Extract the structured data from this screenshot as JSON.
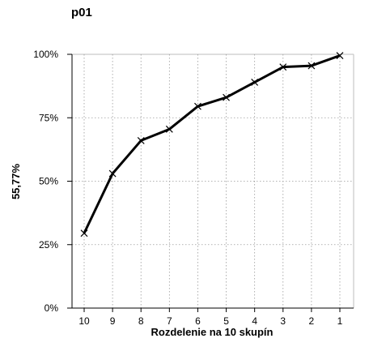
{
  "chart_data": {
    "type": "line",
    "title": "p01",
    "xlabel": "Rozdelenie na 10 skupín",
    "ylabel": "55,77%",
    "categories": [
      "10",
      "9",
      "8",
      "7",
      "6",
      "5",
      "4",
      "3",
      "2",
      "1"
    ],
    "series": [
      {
        "values": [
          29.5,
          53,
          66,
          70.5,
          79.5,
          83,
          89,
          95,
          95.5,
          99.5
        ]
      }
    ],
    "ylim": [
      0,
      100
    ],
    "yticks": [
      0,
      25,
      50,
      75,
      100
    ],
    "ytick_labels": [
      "0%",
      "25%",
      "50%",
      "75%",
      "100%"
    ],
    "grid": true,
    "marker": "x",
    "color": "#000000"
  }
}
